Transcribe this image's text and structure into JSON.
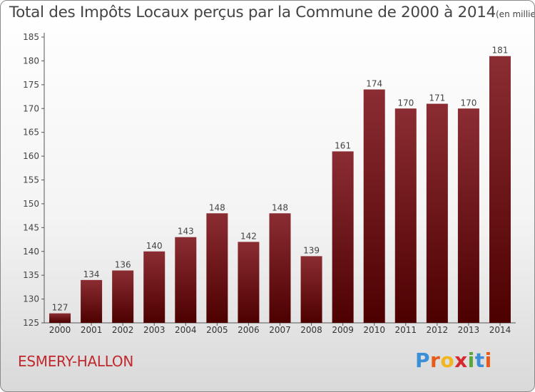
{
  "chart_data": {
    "type": "bar",
    "title": "Total des Impôts Locaux perçus par la Commune de 2000 à 2014",
    "title_unit": "(en milliers d'€)",
    "xlabel": "",
    "ylabel": "",
    "categories": [
      "2000",
      "2001",
      "2002",
      "2003",
      "2004",
      "2005",
      "2006",
      "2007",
      "2008",
      "2009",
      "2010",
      "2011",
      "2012",
      "2013",
      "2014"
    ],
    "values": [
      127,
      134,
      136,
      140,
      143,
      148,
      142,
      148,
      139,
      161,
      174,
      170,
      171,
      170,
      181
    ],
    "ylim": [
      125,
      185
    ],
    "yticks": [
      125,
      130,
      135,
      140,
      145,
      150,
      155,
      160,
      165,
      170,
      175,
      180,
      185
    ],
    "grid": false,
    "bar_color": "#7a1a1e"
  },
  "commune": "ESMERY-HALLON",
  "logo": {
    "letters": [
      "P",
      "r",
      "o",
      "x",
      "i",
      "t",
      "i"
    ],
    "colors": [
      "#3a8fd6",
      "#e85a1a",
      "#f2b51d",
      "#d8282d",
      "#5aa63c",
      "#3a8fd6",
      "#e85a1a"
    ]
  }
}
